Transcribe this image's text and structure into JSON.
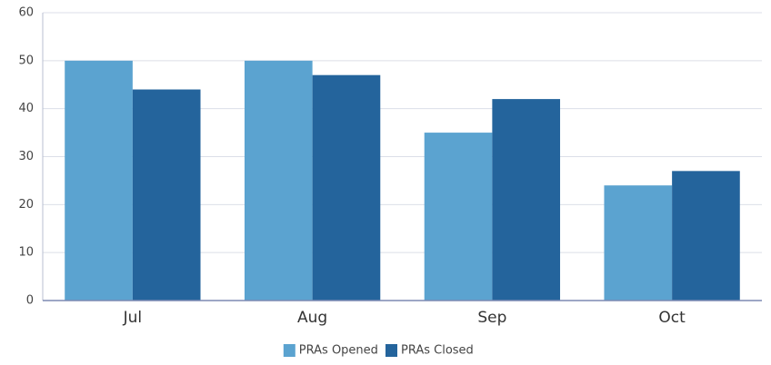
{
  "chart_data": {
    "type": "bar",
    "categories": [
      "Jul",
      "Aug",
      "Sep",
      "Oct"
    ],
    "series": [
      {
        "name": "PRAs Opened",
        "color": "#5ba3d0",
        "values": [
          50,
          50,
          35,
          24
        ]
      },
      {
        "name": "PRAs Closed",
        "color": "#24649c",
        "values": [
          44,
          47,
          42,
          27
        ]
      }
    ],
    "ylim": [
      0,
      60
    ],
    "yticks": [
      0,
      10,
      20,
      30,
      40,
      50,
      60
    ],
    "grid": true,
    "legend": "bottom"
  }
}
